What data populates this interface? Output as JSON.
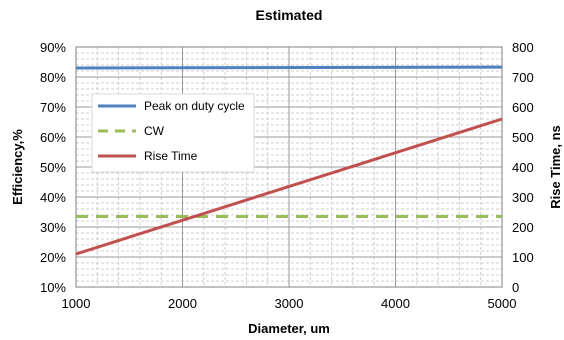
{
  "chart_data": {
    "type": "line",
    "title": "Estimated",
    "xlabel": "Diameter, um",
    "ylabel": "Efficiency,%",
    "y2label": "Rise Time, ns",
    "xlim": [
      1000,
      5000
    ],
    "ylim": [
      0.1,
      0.9
    ],
    "y2lim": [
      0,
      800
    ],
    "x_ticks": [
      "1000",
      "2000",
      "3000",
      "4000",
      "5000"
    ],
    "y_ticks": [
      "10%",
      "20%",
      "30%",
      "40%",
      "50%",
      "60%",
      "70%",
      "80%",
      "90%"
    ],
    "y2_ticks": [
      "0",
      "100",
      "200",
      "300",
      "400",
      "500",
      "600",
      "700",
      "800"
    ],
    "grid": true,
    "legend_position": "upper-left",
    "series": [
      {
        "name": "Peak on duty cycle",
        "axis": "left",
        "color": "#4f81bd",
        "style": "solid",
        "x": [
          1000,
          5000
        ],
        "y": [
          0.83,
          0.833
        ]
      },
      {
        "name": "CW",
        "axis": "left",
        "color": "#9bbb59",
        "style": "dashed",
        "x": [
          1000,
          5000
        ],
        "y": [
          0.335,
          0.335
        ]
      },
      {
        "name": "Rise Time",
        "axis": "right",
        "color": "#c0504d",
        "style": "solid",
        "x": [
          1000,
          5000
        ],
        "y": [
          110,
          560
        ]
      }
    ]
  }
}
